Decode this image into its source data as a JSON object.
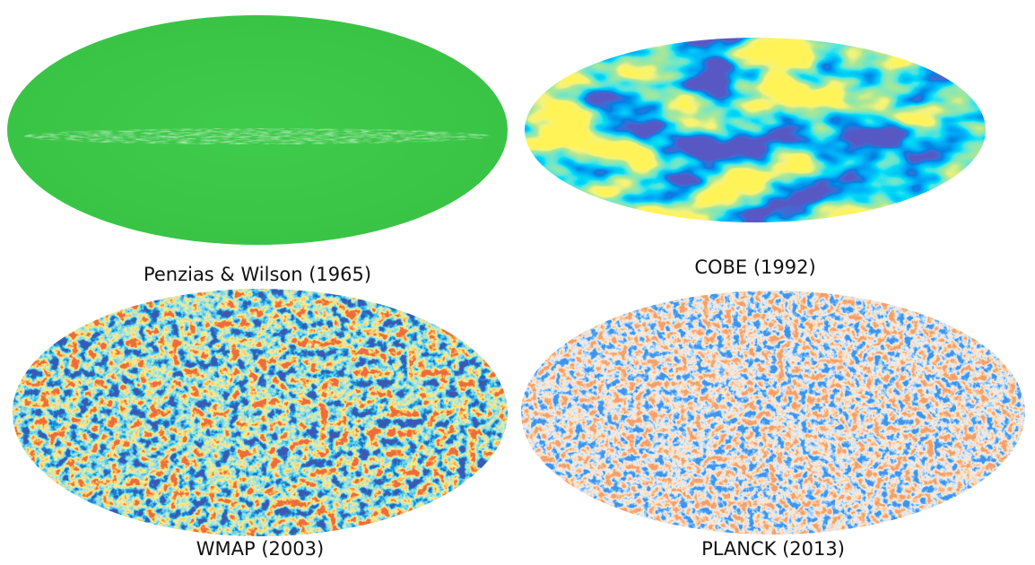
{
  "panels": [
    {
      "caption": "Penzias & Wilson (1965)"
    },
    {
      "caption": "COBE (1992)"
    },
    {
      "caption": "WMAP (2003)"
    },
    {
      "caption": "PLANCK (2013)"
    }
  ]
}
